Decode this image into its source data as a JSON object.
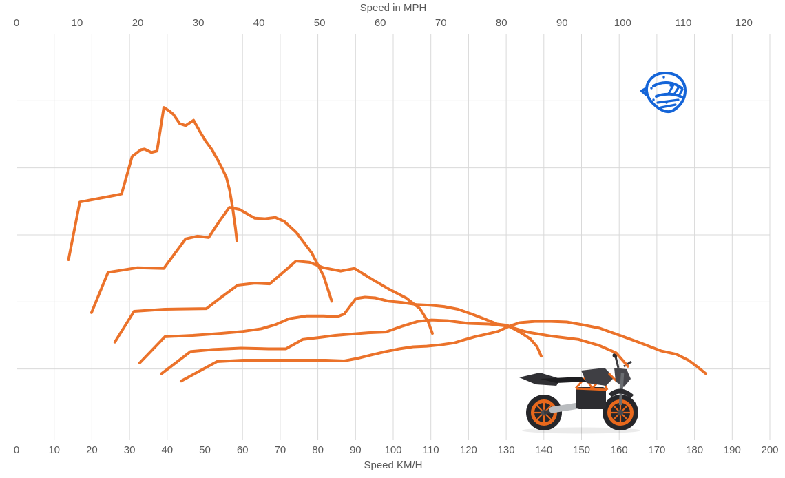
{
  "colors": {
    "curve_orange": "#EB722A",
    "helmet_blue": "#1565D8",
    "gridline": "#D9D9D9",
    "axis_text": "#595959",
    "bike_dark": "#2C2C30",
    "bike_gray": "#47474C",
    "bike_orange": "#E8681C",
    "bike_silver": "#B9BCBF",
    "background": "#FFFFFF"
  },
  "icons": {
    "helmet": "motocross-helmet-icon",
    "motorcycle": "naked-motorcycle-photo"
  },
  "chart_data": {
    "type": "line",
    "title": "",
    "legend": "none",
    "grid": true,
    "top_axis": {
      "title": "Speed in MPH",
      "unit": "mph",
      "min": 0,
      "max": 120,
      "tick_step": 10,
      "ticks": [
        0,
        10,
        20,
        30,
        40,
        50,
        60,
        70,
        80,
        90,
        100,
        110,
        120
      ]
    },
    "bottom_axis": {
      "title": "Speed KM/H",
      "unit": "km/h",
      "min": 0,
      "max": 200,
      "tick_step": 10,
      "ticks": [
        0,
        10,
        20,
        30,
        40,
        50,
        60,
        70,
        80,
        90,
        100,
        110,
        120,
        130,
        140,
        150,
        160,
        170,
        180,
        190,
        200
      ]
    },
    "y_axis": {
      "title": "",
      "labels_visible": false,
      "min": 0,
      "max": 6,
      "gridline_divisions": 6,
      "note": "vertical axis has no visible labels; y values below are in gridline units (0 = bottom line, 6 = top)"
    },
    "series": [
      {
        "name": "curve-1",
        "points": [
          [
            13.8,
            2.63
          ],
          [
            16.8,
            3.49
          ],
          [
            26.1,
            3.59
          ],
          [
            27.9,
            3.61
          ],
          [
            30.7,
            4.17
          ],
          [
            33,
            4.27
          ],
          [
            34,
            4.28
          ],
          [
            35.8,
            4.23
          ],
          [
            37.3,
            4.25
          ],
          [
            39.1,
            4.9
          ],
          [
            40.5,
            4.85
          ],
          [
            41.6,
            4.8
          ],
          [
            43.3,
            4.66
          ],
          [
            44.9,
            4.63
          ],
          [
            47,
            4.71
          ],
          [
            48.6,
            4.55
          ],
          [
            50.1,
            4.41
          ],
          [
            51.9,
            4.27
          ],
          [
            53.5,
            4.11
          ],
          [
            54.6,
            3.99
          ],
          [
            55.7,
            3.86
          ],
          [
            56.6,
            3.66
          ],
          [
            57.4,
            3.39
          ],
          [
            58.1,
            3.11
          ],
          [
            58.5,
            2.91
          ]
        ]
      },
      {
        "name": "curve-2",
        "points": [
          [
            19.9,
            1.84
          ],
          [
            24.3,
            2.44
          ],
          [
            32.1,
            2.51
          ],
          [
            39.1,
            2.5
          ],
          [
            40.4,
            2.6
          ],
          [
            44.9,
            2.94
          ],
          [
            48,
            2.98
          ],
          [
            51,
            2.96
          ],
          [
            53.7,
            3.19
          ],
          [
            56.5,
            3.41
          ],
          [
            59.2,
            3.38
          ],
          [
            63.2,
            3.25
          ],
          [
            66,
            3.24
          ],
          [
            68.7,
            3.26
          ],
          [
            71.1,
            3.2
          ],
          [
            74.2,
            3.04
          ],
          [
            78.4,
            2.73
          ],
          [
            81.5,
            2.39
          ],
          [
            83.7,
            2.01
          ]
        ]
      },
      {
        "name": "curve-3",
        "points": [
          [
            26.1,
            1.4
          ],
          [
            31.2,
            1.86
          ],
          [
            39.4,
            1.89
          ],
          [
            50.4,
            1.9
          ],
          [
            54.6,
            2.08
          ],
          [
            58.7,
            2.25
          ],
          [
            63.2,
            2.28
          ],
          [
            67.2,
            2.27
          ],
          [
            72,
            2.5
          ],
          [
            74.2,
            2.61
          ],
          [
            77.8,
            2.59
          ],
          [
            81.5,
            2.51
          ],
          [
            86.1,
            2.46
          ],
          [
            89.7,
            2.5
          ],
          [
            94.3,
            2.34
          ],
          [
            98.9,
            2.19
          ],
          [
            103.4,
            2.06
          ],
          [
            107.1,
            1.9
          ],
          [
            109.3,
            1.7
          ],
          [
            110.4,
            1.53
          ]
        ]
      },
      {
        "name": "curve-4",
        "points": [
          [
            32.7,
            1.09
          ],
          [
            39.4,
            1.48
          ],
          [
            46.8,
            1.5
          ],
          [
            54.1,
            1.53
          ],
          [
            60.1,
            1.56
          ],
          [
            65,
            1.6
          ],
          [
            68.7,
            1.66
          ],
          [
            72.4,
            1.75
          ],
          [
            76.9,
            1.79
          ],
          [
            81.5,
            1.79
          ],
          [
            85.2,
            1.78
          ],
          [
            87,
            1.82
          ],
          [
            90.1,
            2.05
          ],
          [
            92.5,
            2.07
          ],
          [
            95.2,
            2.06
          ],
          [
            98.9,
            2.01
          ],
          [
            102.5,
            1.99
          ],
          [
            106.2,
            1.96
          ],
          [
            109.9,
            1.95
          ],
          [
            113.5,
            1.93
          ],
          [
            117.2,
            1.89
          ],
          [
            120.8,
            1.82
          ],
          [
            124.5,
            1.74
          ],
          [
            127.6,
            1.67
          ],
          [
            130.3,
            1.65
          ],
          [
            133.6,
            1.55
          ],
          [
            136.4,
            1.45
          ],
          [
            138.2,
            1.33
          ],
          [
            139.3,
            1.19
          ]
        ]
      },
      {
        "name": "curve-5",
        "points": [
          [
            38.5,
            0.93
          ],
          [
            46.2,
            1.26
          ],
          [
            52.2,
            1.29
          ],
          [
            59.6,
            1.31
          ],
          [
            66.9,
            1.3
          ],
          [
            71.5,
            1.3
          ],
          [
            76,
            1.44
          ],
          [
            80.6,
            1.47
          ],
          [
            84.6,
            1.5
          ],
          [
            88.8,
            1.52
          ],
          [
            93.4,
            1.54
          ],
          [
            98,
            1.55
          ],
          [
            102.5,
            1.64
          ],
          [
            106.6,
            1.71
          ],
          [
            110.2,
            1.73
          ],
          [
            114.4,
            1.72
          ],
          [
            119.9,
            1.68
          ],
          [
            125.4,
            1.67
          ],
          [
            130.3,
            1.64
          ],
          [
            135.5,
            1.55
          ],
          [
            141.9,
            1.49
          ],
          [
            149.2,
            1.44
          ],
          [
            154.7,
            1.35
          ],
          [
            159.2,
            1.24
          ],
          [
            162.3,
            1.04
          ]
        ]
      },
      {
        "name": "curve-6",
        "points": [
          [
            43.7,
            0.82
          ],
          [
            53.2,
            1.11
          ],
          [
            60.1,
            1.13
          ],
          [
            67.8,
            1.13
          ],
          [
            76,
            1.13
          ],
          [
            82.1,
            1.13
          ],
          [
            87,
            1.12
          ],
          [
            90.7,
            1.16
          ],
          [
            94.3,
            1.21
          ],
          [
            98,
            1.26
          ],
          [
            101.6,
            1.3
          ],
          [
            105.3,
            1.33
          ],
          [
            108.9,
            1.34
          ],
          [
            112.6,
            1.36
          ],
          [
            116.3,
            1.39
          ],
          [
            118.6,
            1.43
          ],
          [
            121.7,
            1.48
          ],
          [
            124.9,
            1.52
          ],
          [
            127.8,
            1.56
          ],
          [
            130.9,
            1.64
          ],
          [
            133.6,
            1.69
          ],
          [
            137.6,
            1.71
          ],
          [
            141.9,
            1.71
          ],
          [
            146.1,
            1.7
          ],
          [
            150.1,
            1.66
          ],
          [
            154.7,
            1.61
          ],
          [
            160.2,
            1.5
          ],
          [
            165.6,
            1.39
          ],
          [
            171.1,
            1.27
          ],
          [
            175.2,
            1.22
          ],
          [
            178.4,
            1.13
          ],
          [
            180.8,
            1.03
          ],
          [
            183,
            0.93
          ]
        ]
      }
    ]
  }
}
